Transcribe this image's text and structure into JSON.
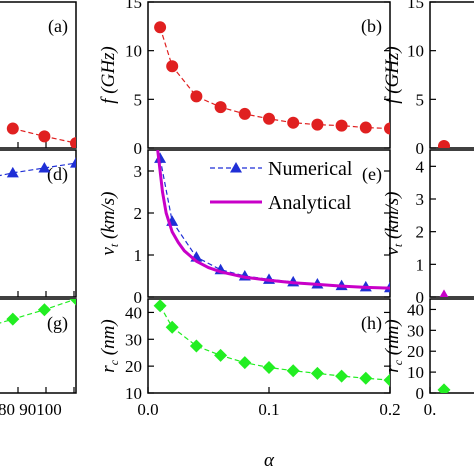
{
  "chart_data": [
    {
      "id": "a",
      "panel_label": "(a)",
      "type": "scatter",
      "partial": "cropped left",
      "xlim": [
        0,
        100
      ],
      "ylim": [
        0,
        15
      ],
      "x_ticks": [
        "80",
        "90",
        "100"
      ],
      "y_ticks": [],
      "series": [
        {
          "color": "#e02020",
          "marker": "circle",
          "line": "dashed",
          "x": [
            80,
            90,
            100
          ],
          "y": [
            2.0,
            1.2,
            0.5
          ]
        }
      ]
    },
    {
      "id": "d",
      "panel_label": "(d)",
      "type": "scatter",
      "partial": "cropped left",
      "xlim": [
        0,
        100
      ],
      "ylim": [
        0,
        4.5
      ],
      "x_ticks": [
        "80",
        "90",
        "100"
      ],
      "y_ticks": [],
      "series": [
        {
          "color": "#1f2fd6",
          "marker": "triangle",
          "line": "dashed",
          "x": [
            70,
            80,
            90,
            100
          ],
          "y": [
            3.6,
            3.8,
            3.95,
            4.1
          ]
        }
      ]
    },
    {
      "id": "g",
      "panel_label": "(g)",
      "type": "scatter",
      "partial": "cropped left",
      "xlim": [
        0,
        100
      ],
      "ylim": [
        10,
        45
      ],
      "x_ticks": [
        "80",
        "90",
        "100"
      ],
      "x_tick_text": "80 90100",
      "y_ticks": [],
      "series": [
        {
          "color": "#22ee22",
          "marker": "diamond",
          "line": "dashed",
          "x": [
            70,
            80,
            90,
            100
          ],
          "y": [
            34,
            37.5,
            41,
            45
          ]
        }
      ]
    },
    {
      "id": "b",
      "panel_label": "(b)",
      "type": "scatter",
      "xlim": [
        0,
        0.2
      ],
      "ylim": [
        0,
        15
      ],
      "ylabel": "f (GHz)",
      "ylabel_italic": "f",
      "ylabel_rest": " (GHz)",
      "y_ticks": [
        "0",
        "5",
        "10",
        "15"
      ],
      "y_tick_values": [
        0,
        5,
        10,
        15
      ],
      "series": [
        {
          "color": "#e02020",
          "marker": "circle",
          "line": "dashed",
          "x": [
            0.01,
            0.02,
            0.04,
            0.06,
            0.08,
            0.1,
            0.12,
            0.14,
            0.16,
            0.18,
            0.2
          ],
          "y": [
            12.4,
            8.4,
            5.3,
            4.2,
            3.5,
            3.0,
            2.6,
            2.4,
            2.3,
            2.1,
            2.0
          ]
        }
      ]
    },
    {
      "id": "e",
      "panel_label": "(e)",
      "type": "line",
      "xlim": [
        0,
        0.2
      ],
      "ylim": [
        0,
        3.5
      ],
      "ylabel": "vt (km/s)",
      "ylabel_italic": "v",
      "ylabel_sub": "t",
      "ylabel_rest": " (km/s)",
      "y_ticks": [
        "0",
        "1",
        "2",
        "3"
      ],
      "y_tick_values": [
        0,
        1,
        2,
        3
      ],
      "legend_position": "top-right",
      "series": [
        {
          "name": "Numerical",
          "color": "#1f2fd6",
          "marker": "triangle",
          "line": "dashed",
          "x": [
            0.01,
            0.02,
            0.04,
            0.06,
            0.08,
            0.1,
            0.12,
            0.14,
            0.16,
            0.18,
            0.2
          ],
          "y": [
            3.3,
            1.8,
            0.95,
            0.65,
            0.5,
            0.42,
            0.36,
            0.31,
            0.27,
            0.24,
            0.22
          ]
        },
        {
          "name": "Analytical",
          "color": "#c800c8",
          "marker": "none",
          "line": "solid",
          "x": [
            0.008,
            0.01,
            0.012,
            0.015,
            0.02,
            0.025,
            0.03,
            0.04,
            0.05,
            0.06,
            0.08,
            0.1,
            0.12,
            0.14,
            0.16,
            0.18,
            0.2
          ],
          "y": [
            3.5,
            3.0,
            2.5,
            2.0,
            1.55,
            1.3,
            1.1,
            0.85,
            0.7,
            0.6,
            0.47,
            0.4,
            0.34,
            0.3,
            0.26,
            0.23,
            0.21
          ]
        }
      ]
    },
    {
      "id": "h",
      "panel_label": "(h)",
      "type": "scatter",
      "xlim": [
        0,
        0.2
      ],
      "ylim": [
        10,
        45
      ],
      "xlabel": "α",
      "ylabel": "rc (nm)",
      "ylabel_italic": "r",
      "ylabel_sub": "c",
      "ylabel_rest": " (nm)",
      "x_ticks": [
        "0.0",
        "0.1",
        "0.2"
      ],
      "x_tick_values": [
        0,
        0.1,
        0.2
      ],
      "y_ticks": [
        "10",
        "20",
        "30",
        "40"
      ],
      "y_tick_values": [
        10,
        20,
        30,
        40
      ],
      "series": [
        {
          "color": "#22ee22",
          "marker": "diamond",
          "line": "dashed",
          "x": [
            0.01,
            0.02,
            0.04,
            0.06,
            0.08,
            0.1,
            0.12,
            0.14,
            0.16,
            0.18,
            0.2
          ],
          "y": [
            42.5,
            34.5,
            27.5,
            24.0,
            21.3,
            19.5,
            18.3,
            17.3,
            16.3,
            15.5,
            14.8
          ]
        }
      ]
    },
    {
      "id": "c",
      "type": "scatter",
      "partial": "cropped right",
      "xlim": [
        0,
        0.2
      ],
      "ylim": [
        0,
        15
      ],
      "ylabel": "f (GHz)",
      "ylabel_italic": "f",
      "ylabel_rest": " (GHz)",
      "y_ticks": [
        "0",
        "5",
        "10",
        "15"
      ],
      "y_tick_values": [
        0,
        5,
        10,
        15
      ],
      "series": [
        {
          "color": "#e02020",
          "marker": "circle",
          "line": "dashed",
          "x": [
            0.01
          ],
          "y": [
            0.2
          ]
        }
      ]
    },
    {
      "id": "f",
      "type": "scatter",
      "partial": "cropped right",
      "xlim": [
        0,
        0.2
      ],
      "ylim": [
        0,
        4.5
      ],
      "ylabel": "vt (km/s)",
      "ylabel_italic": "v",
      "ylabel_sub": "t",
      "ylabel_rest": " (km/s)",
      "y_ticks": [
        "0",
        "1",
        "2",
        "3",
        "4"
      ],
      "y_tick_values": [
        0,
        1,
        2,
        3,
        4
      ],
      "series": [
        {
          "color": "#c800c8",
          "marker": "triangle",
          "line": "solid",
          "x": [
            0.01
          ],
          "y": [
            0.05
          ]
        }
      ]
    },
    {
      "id": "i",
      "type": "scatter",
      "partial": "cropped right",
      "xlim": [
        0,
        0.2
      ],
      "ylim": [
        0,
        45
      ],
      "ylabel": "rc (nm)",
      "ylabel_italic": "r",
      "ylabel_sub": "c",
      "ylabel_rest": " (nm)",
      "x_ticks": [
        "0."
      ],
      "x_tick_values": [
        0
      ],
      "y_ticks": [
        "0",
        "10",
        "20",
        "30",
        "40"
      ],
      "y_tick_values": [
        0,
        10,
        20,
        30,
        40
      ],
      "series": [
        {
          "color": "#22ee22",
          "marker": "diamond",
          "line": "dashed",
          "x": [
            0.01
          ],
          "y": [
            1.5
          ]
        }
      ]
    }
  ]
}
